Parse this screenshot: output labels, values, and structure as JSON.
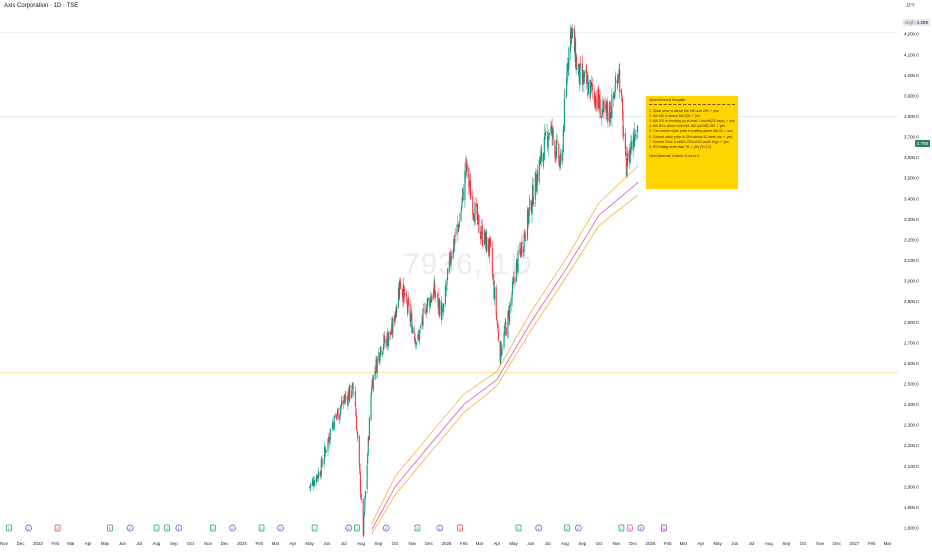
{
  "header": {
    "symbol_title": "Axis Corporation · 1D · TSE",
    "currency": "JPY"
  },
  "watermark": "7936, 1D",
  "price_labels": {
    "current": "3,798",
    "high_label": "High",
    "high_value": "4,209"
  },
  "colors": {
    "up": "#089981",
    "down": "#f23645",
    "ma_orange": "#f5a623",
    "ma_magenta": "#e040a0",
    "box": "#ffd400",
    "current_line": "#2a7e5c"
  },
  "info_box": {
    "title": "Minervini trend template",
    "lines": [
      "1. Stock price is above the 150 and 200 ✓ yes",
      "2. MA 150 is above MA 200 ✓ yes",
      "3. MA 200 is trending up at least 1 month(22 days) ✓ yes",
      "4. MA 50 is above both MA 150 and MA 200 ✓ yes",
      "5. The current stock price is trading above MA 50 ✓ yes",
      "6. Current stock price is 25% above 52 week low ✓ yes",
      "7. Current Price is within 25% of 52 week High ✓ yes",
      "8. RS Rating more than 70 ✓ yes (91.12)"
    ],
    "result": "Meet Minervini Criteria: 8 out of 8"
  },
  "chart_data": {
    "type": "candlestick",
    "title": "Axis Corporation · 1D · TSE",
    "y_axis": {
      "ticks": [
        1800,
        1900,
        2000,
        2100,
        2200,
        2300,
        2400,
        2500,
        2600,
        2700,
        2800,
        2900,
        3000,
        3100,
        3200,
        3300,
        3400,
        3500,
        3600,
        3700,
        3800,
        3900,
        4000,
        4100,
        4200
      ],
      "tick_labels": [
        "1,800.0",
        "1,900.0",
        "2,000.0",
        "2,100.0",
        "2,200.0",
        "2,300.0",
        "2,400.0",
        "2,500.0",
        "2,600.0",
        "2,700.0",
        "2,800.0",
        "2,900.0",
        "3,000.0",
        "3,100.0",
        "3,200.0",
        "3,300.0",
        "3,400.0",
        "3,500.0",
        "3,600.0",
        "3,700.0",
        "3,800.0",
        "3,900.0",
        "4,000.0",
        "4,100.0",
        "4,200.0"
      ],
      "range": [
        1775,
        4235
      ]
    },
    "x_axis": {
      "labels": [
        "Nov",
        "Dec",
        "2023",
        "Feb",
        "Mar",
        "Apr",
        "May",
        "Jun",
        "Jul",
        "Aug",
        "Sep",
        "Oct",
        "Nov",
        "Dec",
        "2024",
        "Feb",
        "Mar",
        "Apr",
        "May",
        "Jun",
        "Jul",
        "Aug",
        "Sep",
        "Oct",
        "Nov",
        "Dec",
        "2025",
        "Feb",
        "Mar",
        "Apr",
        "May",
        "Jun",
        "Jul",
        "Aug",
        "Sep",
        "Oct",
        "Nov",
        "Dec",
        "2026",
        "Feb",
        "Mar",
        "Apr",
        "May",
        "Jun",
        "Jul",
        "Aug",
        "Sep",
        "Oct",
        "Nov",
        "Dec",
        "2027",
        "Feb",
        "Mar"
      ]
    },
    "price_key_points": [
      [
        "2024-05-01",
        2000
      ],
      [
        "2024-05-20",
        2080
      ],
      [
        "2024-06-10",
        2300
      ],
      [
        "2024-07-01",
        2420
      ],
      [
        "2024-07-20",
        2480
      ],
      [
        "2024-08-05",
        1780
      ],
      [
        "2024-08-20",
        2500
      ],
      [
        "2024-09-05",
        2680
      ],
      [
        "2024-09-25",
        2750
      ],
      [
        "2024-10-10",
        3000
      ],
      [
        "2024-10-25",
        2850
      ],
      [
        "2024-11-10",
        2700
      ],
      [
        "2024-11-25",
        2880
      ],
      [
        "2024-12-10",
        2950
      ],
      [
        "2024-12-25",
        2830
      ],
      [
        "2025-01-10",
        3150
      ],
      [
        "2025-01-25",
        3300
      ],
      [
        "2025-02-05",
        3550
      ],
      [
        "2025-02-15",
        3400
      ],
      [
        "2025-03-01",
        3250
      ],
      [
        "2025-03-20",
        3150
      ],
      [
        "2025-04-07",
        2650
      ],
      [
        "2025-04-20",
        2800
      ],
      [
        "2025-05-05",
        3050
      ],
      [
        "2025-05-25",
        3280
      ],
      [
        "2025-06-15",
        3550
      ],
      [
        "2025-07-05",
        3750
      ],
      [
        "2025-07-25",
        3550
      ],
      [
        "2025-08-05",
        4050
      ],
      [
        "2025-08-12",
        4230
      ],
      [
        "2025-08-25",
        4000
      ],
      [
        "2025-09-10",
        3950
      ],
      [
        "2025-09-25",
        3900
      ],
      [
        "2025-10-10",
        3800
      ],
      [
        "2025-10-25",
        3850
      ],
      [
        "2025-11-05",
        4050
      ],
      [
        "2025-11-18",
        3550
      ],
      [
        "2025-12-05",
        3750
      ],
      [
        "2025-12-10",
        3798
      ]
    ],
    "current_price": 3798,
    "all_time_high": 4209,
    "horizontal_line": 2555,
    "moving_averages": [
      {
        "color": "orange",
        "points": [
          [
            "2024-08-20",
            1820
          ],
          [
            "2024-10-01",
            2050
          ],
          [
            "2024-12-01",
            2250
          ],
          [
            "2025-02-01",
            2450
          ],
          [
            "2025-04-01",
            2560
          ],
          [
            "2025-06-01",
            2850
          ],
          [
            "2025-08-01",
            3100
          ],
          [
            "2025-10-01",
            3380
          ],
          [
            "2025-12-10",
            3560
          ]
        ]
      },
      {
        "color": "magenta",
        "points": [
          [
            "2024-08-20",
            1790
          ],
          [
            "2024-10-01",
            2000
          ],
          [
            "2024-12-01",
            2200
          ],
          [
            "2025-02-01",
            2400
          ],
          [
            "2025-04-01",
            2520
          ],
          [
            "2025-06-01",
            2800
          ],
          [
            "2025-08-01",
            3050
          ],
          [
            "2025-10-01",
            3320
          ],
          [
            "2025-12-10",
            3480
          ]
        ]
      },
      {
        "color": "orange",
        "points": [
          [
            "2024-08-20",
            1770
          ],
          [
            "2024-10-01",
            1960
          ],
          [
            "2024-12-01",
            2160
          ],
          [
            "2025-02-01",
            2360
          ],
          [
            "2025-04-01",
            2490
          ],
          [
            "2025-06-01",
            2760
          ],
          [
            "2025-08-01",
            3010
          ],
          [
            "2025-10-01",
            3270
          ],
          [
            "2025-12-10",
            3420
          ]
        ]
      }
    ],
    "events": [
      {
        "date": "2022-11-10",
        "type": "dividend"
      },
      {
        "date": "2022-12-15",
        "type": "earnings"
      },
      {
        "date": "2023-02-05",
        "type": "split"
      },
      {
        "date": "2023-05-10",
        "type": "dividend"
      },
      {
        "date": "2023-06-15",
        "type": "earnings"
      },
      {
        "date": "2023-08-01",
        "type": "dividend"
      },
      {
        "date": "2023-08-20",
        "type": "dividend"
      },
      {
        "date": "2023-09-10",
        "type": "earnings"
      },
      {
        "date": "2023-11-10",
        "type": "dividend"
      },
      {
        "date": "2023-12-15",
        "type": "earnings"
      },
      {
        "date": "2024-02-05",
        "type": "dividend"
      },
      {
        "date": "2024-03-10",
        "type": "earnings"
      },
      {
        "date": "2024-05-10",
        "type": "dividend"
      },
      {
        "date": "2024-07-10",
        "type": "earnings"
      },
      {
        "date": "2024-07-25",
        "type": "dividend"
      },
      {
        "date": "2024-09-15",
        "type": "earnings"
      },
      {
        "date": "2024-11-10",
        "type": "dividend"
      },
      {
        "date": "2024-12-20",
        "type": "earnings"
      },
      {
        "date": "2025-01-25",
        "type": "split"
      },
      {
        "date": "2025-05-10",
        "type": "dividend"
      },
      {
        "date": "2025-06-15",
        "type": "earnings"
      },
      {
        "date": "2025-08-05",
        "type": "dividend"
      },
      {
        "date": "2025-08-25",
        "type": "earnings"
      },
      {
        "date": "2025-11-10",
        "type": "dividend"
      },
      {
        "date": "2025-11-25",
        "type": "news"
      },
      {
        "date": "2025-12-15",
        "type": "earnings"
      },
      {
        "date": "2026-01-25",
        "type": "news2"
      }
    ],
    "grid": false
  }
}
